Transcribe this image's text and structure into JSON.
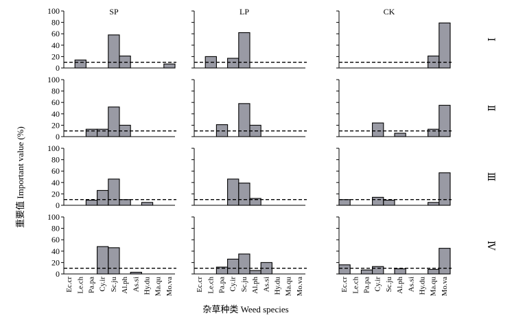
{
  "chart_data": {
    "type": "bar",
    "ylabel": "重要值 Important value (%)",
    "xlabel": "杂草种类 Weed species",
    "categories": [
      "Ec.cr",
      "Le.ch",
      "Pa.pa",
      "Cy.ir",
      "Sc.ju",
      "Al.ph",
      "As.si",
      "Hy.du",
      "Ma.qu",
      "Mo.va"
    ],
    "yticks": [
      0,
      20,
      40,
      60,
      80,
      100
    ],
    "ylim": [
      0,
      100
    ],
    "threshold": 10,
    "columns": [
      "SP",
      "LP",
      "CK"
    ],
    "rows": [
      "Ⅰ",
      "Ⅱ",
      "Ⅲ",
      "Ⅳ"
    ],
    "bar_color": "#999aa4",
    "panels": [
      [
        [
          0,
          14,
          0,
          0,
          58,
          21,
          0,
          0,
          0,
          7
        ],
        [
          0,
          20,
          0,
          17,
          62,
          0,
          0,
          0,
          0,
          0
        ],
        [
          0,
          0,
          0,
          0,
          0,
          0,
          0,
          0,
          21,
          79
        ]
      ],
      [
        [
          0,
          0,
          13,
          13,
          52,
          20,
          0,
          0,
          0,
          0
        ],
        [
          0,
          0,
          21,
          0,
          58,
          20,
          0,
          0,
          0,
          0
        ],
        [
          0,
          0,
          0,
          24,
          0,
          6,
          0,
          0,
          13,
          55
        ]
      ],
      [
        [
          0,
          0,
          9,
          26,
          46,
          10,
          0,
          5,
          0,
          0
        ],
        [
          0,
          0,
          0,
          46,
          39,
          12,
          0,
          0,
          0,
          0
        ],
        [
          10,
          0,
          0,
          14,
          9,
          0,
          0,
          0,
          5,
          57
        ]
      ],
      [
        [
          0,
          0,
          0,
          48,
          46,
          0,
          3,
          0,
          0,
          0
        ],
        [
          0,
          0,
          12,
          26,
          35,
          6,
          20,
          0,
          0,
          0
        ],
        [
          16,
          0,
          7,
          13,
          0,
          9,
          0,
          0,
          8,
          45
        ]
      ]
    ]
  }
}
